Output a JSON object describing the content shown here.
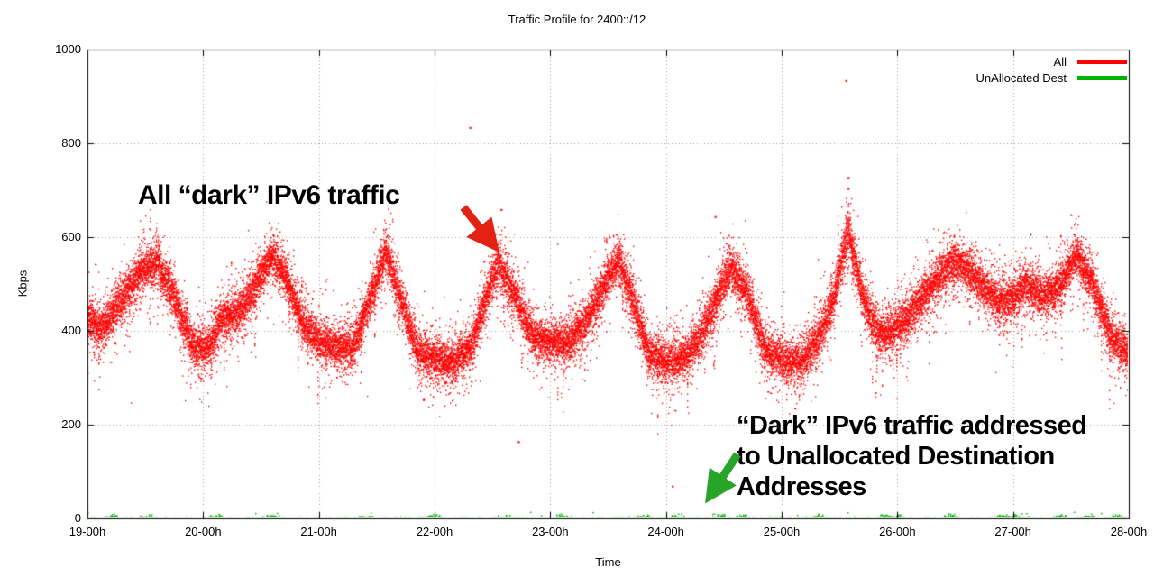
{
  "title": "Traffic Profile for 2400::/12",
  "axes": {
    "xlabel": "Time",
    "ylabel": "Kbps",
    "ymin": 0,
    "ymax": 1000,
    "yticks": [
      0,
      200,
      400,
      600,
      800,
      1000
    ],
    "xticks": [
      "19-00h",
      "20-00h",
      "21-00h",
      "22-00h",
      "23-00h",
      "24-00h",
      "25-00h",
      "26-00h",
      "27-00h",
      "28-00h"
    ]
  },
  "legend": {
    "items": [
      {
        "label": "All",
        "color": "#ff0000"
      },
      {
        "label": "UnAllocated Dest",
        "color": "#00b400"
      }
    ]
  },
  "chart_data": {
    "type": "scatter",
    "title": "Traffic Profile for 2400::/12",
    "xlabel": "Time",
    "ylabel": "Kbps",
    "xlim": [
      "19-00h",
      "28-00h"
    ],
    "ylim": [
      0,
      1000
    ],
    "grid": true,
    "legend_position": "top-right-inside",
    "series": [
      {
        "name": "All",
        "color": "#ff0000",
        "style": "dense-noisy-band",
        "band_halfwidth_kbps": 50,
        "x_hours": [
          19.0,
          19.1,
          19.25,
          19.45,
          19.6,
          19.75,
          19.9,
          20.05,
          20.15,
          20.3,
          20.45,
          20.58,
          20.7,
          20.85,
          21.0,
          21.15,
          21.3,
          21.45,
          21.58,
          21.7,
          21.85,
          22.0,
          22.15,
          22.3,
          22.45,
          22.55,
          22.7,
          22.85,
          23.0,
          23.15,
          23.3,
          23.45,
          23.58,
          23.7,
          23.85,
          24.0,
          24.15,
          24.3,
          24.45,
          24.56,
          24.7,
          24.85,
          25.0,
          25.15,
          25.3,
          25.45,
          25.57,
          25.7,
          25.85,
          26.0,
          26.15,
          26.3,
          26.45,
          26.55,
          26.7,
          26.85,
          27.0,
          27.1,
          27.25,
          27.4,
          27.55,
          27.7,
          27.85,
          28.0
        ],
        "y_mean_kbps": [
          430,
          405,
          450,
          530,
          545,
          470,
          370,
          360,
          430,
          440,
          500,
          560,
          520,
          420,
          380,
          365,
          370,
          480,
          570,
          470,
          355,
          340,
          335,
          360,
          480,
          545,
          470,
          390,
          375,
          380,
          420,
          490,
          555,
          470,
          350,
          335,
          345,
          390,
          480,
          535,
          480,
          360,
          340,
          330,
          380,
          470,
          620,
          470,
          390,
          410,
          450,
          500,
          545,
          545,
          505,
          465,
          470,
          500,
          475,
          500,
          565,
          490,
          385,
          350
        ],
        "outliers": [
          {
            "x": 22.3,
            "y": 835
          },
          {
            "x": 25.55,
            "y": 935
          },
          {
            "x": 25.57,
            "y": 728
          },
          {
            "x": 25.57,
            "y": 705
          },
          {
            "x": 24.42,
            "y": 645
          },
          {
            "x": 22.57,
            "y": 660
          },
          {
            "x": 22.72,
            "y": 165
          },
          {
            "x": 21.9,
            "y": 255
          },
          {
            "x": 24.05,
            "y": 70
          }
        ]
      },
      {
        "name": "UnAllocated Dest",
        "color": "#00b400",
        "style": "sparse-near-zero",
        "y_range_kbps": [
          0,
          15
        ],
        "cluster_x_hours": [
          19.2,
          19.5,
          20.1,
          20.6,
          21.4,
          22.0,
          22.6,
          23.1,
          23.8,
          24.1,
          24.45,
          24.65,
          25.3,
          25.9,
          26.0,
          26.45,
          26.9,
          27.0,
          27.4,
          27.65,
          27.9
        ]
      }
    ],
    "annotations": [
      {
        "text": "All “dark” IPv6 traffic",
        "arrow_color": "#e32213"
      },
      {
        "text_lines": [
          "“Dark” IPv6 traffic addressed",
          "to Unallocated Destination",
          "Addresses"
        ],
        "arrow_color": "#28a428"
      }
    ]
  }
}
